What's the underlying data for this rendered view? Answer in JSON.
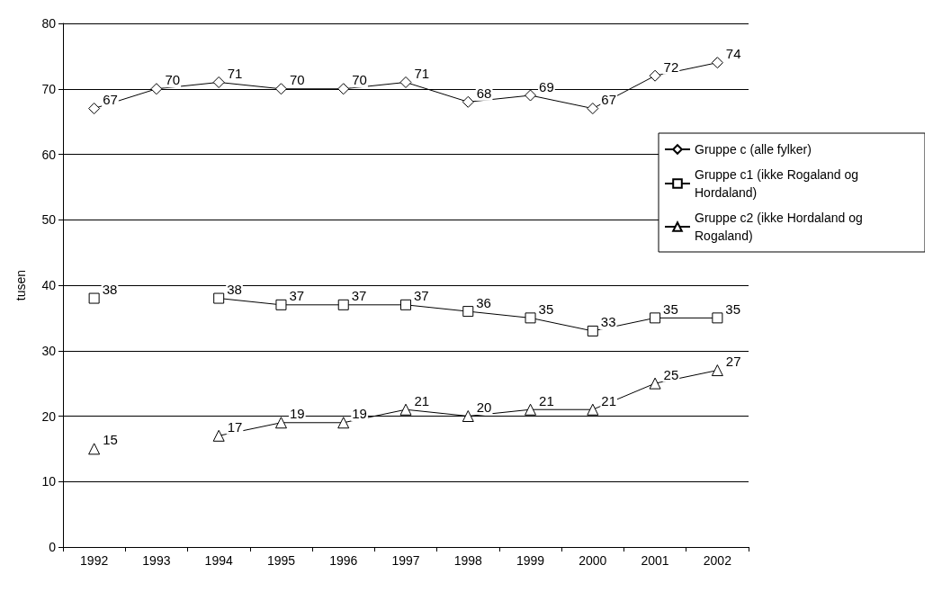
{
  "chart_data": {
    "type": "line",
    "ylabel": "tusen",
    "categories": [
      "1992",
      "1993",
      "1994",
      "1995",
      "1996",
      "1997",
      "1998",
      "1999",
      "2000",
      "2001",
      "2002"
    ],
    "series": [
      {
        "name": "Gruppe c (alle fylker)",
        "color": "#000000",
        "marker": "diamond",
        "values": [
          67,
          70,
          71,
          70,
          70,
          71,
          68,
          69,
          67,
          72,
          74
        ]
      },
      {
        "name": "Gruppe c1 (ikke Rogaland og Hordaland)",
        "color": "#000000",
        "marker": "square",
        "values": [
          38,
          null,
          38,
          37,
          37,
          37,
          36,
          35,
          33,
          35,
          35
        ]
      },
      {
        "name": "Gruppe c2 (ikke Hordaland og Rogaland)",
        "color": "#000000",
        "marker": "triangle",
        "values": [
          15,
          null,
          17,
          19,
          19,
          21,
          20,
          21,
          21,
          25,
          27
        ]
      }
    ],
    "ylim": [
      0,
      80
    ],
    "yticks": [
      0,
      10,
      20,
      30,
      40,
      50,
      60,
      70,
      80
    ],
    "grid": "y",
    "legend": "right",
    "data_labels": true,
    "line_style": "solid"
  }
}
